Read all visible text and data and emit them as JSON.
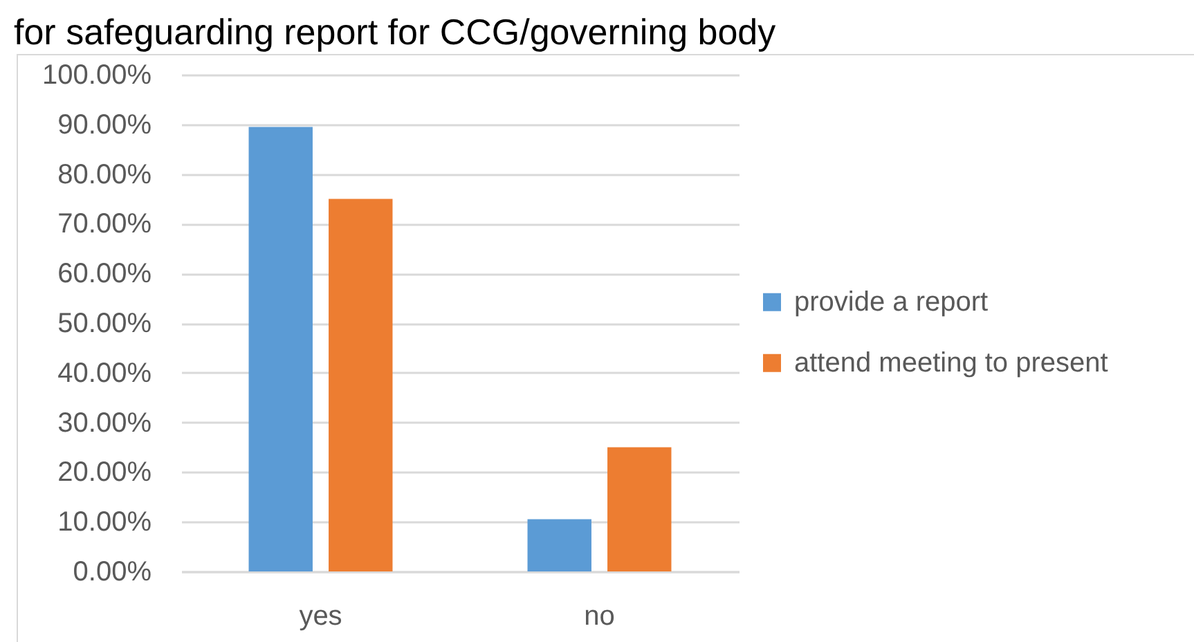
{
  "chart_data": {
    "type": "bar",
    "title": "for safeguarding report for CCG/governing body",
    "categories": [
      "yes",
      "no"
    ],
    "series": [
      {
        "name": "provide a report",
        "color": "#5b9bd5",
        "values": [
          89.5,
          10.5
        ]
      },
      {
        "name": "attend meeting to present",
        "color": "#ed7d31",
        "values": [
          75,
          25
        ]
      }
    ],
    "ylim": [
      0,
      100
    ],
    "yticks": [
      {
        "value": 0,
        "label": "0.00%"
      },
      {
        "value": 10,
        "label": "10.00%"
      },
      {
        "value": 20,
        "label": "20.00%"
      },
      {
        "value": 30,
        "label": "30.00%"
      },
      {
        "value": 40,
        "label": "40.00%"
      },
      {
        "value": 50,
        "label": "50.00%"
      },
      {
        "value": 60,
        "label": "60.00%"
      },
      {
        "value": 70,
        "label": "70.00%"
      },
      {
        "value": 80,
        "label": "80.00%"
      },
      {
        "value": 90,
        "label": "90.00%"
      },
      {
        "value": 100,
        "label": "100.00%"
      }
    ],
    "grid": true,
    "legend": "right"
  }
}
